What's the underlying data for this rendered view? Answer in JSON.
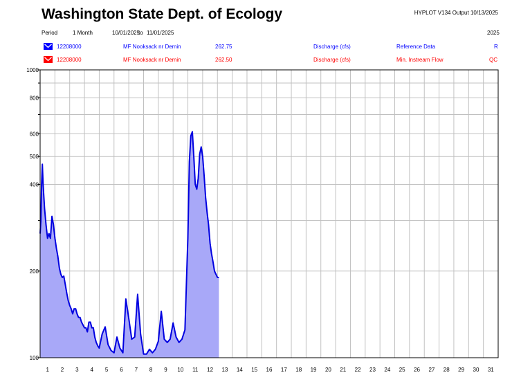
{
  "header": {
    "title": "Washington State Dept. of Ecology",
    "output_info": "HYPLOT V134  Output 10/13/2025"
  },
  "period": {
    "label": "Period",
    "duration": "1 Month",
    "start": "10/01/2025",
    "to": "to",
    "end": "11/01/2025",
    "year": "2025"
  },
  "series_rows": [
    {
      "station": "12208000",
      "site": "MF Nooksack nr Demin",
      "value": "262.75",
      "parameter": "Discharge (cfs)",
      "data_type": "Reference Data",
      "code": "R",
      "color": "#0000ff"
    },
    {
      "station": "12208000",
      "site": "MF Nooksack nr Demin",
      "value": "262.50",
      "parameter": "Discharge (cfs)",
      "data_type": "Min. Instream Flow",
      "code": "QC",
      "color": "#ff0000"
    }
  ],
  "chart_data": {
    "type": "area",
    "yscale": "log",
    "ylim": [
      100,
      1000
    ],
    "xlim": [
      1,
      32
    ],
    "y_ticks": [
      "100",
      "200",
      "400",
      "500",
      "600",
      "800",
      "1000"
    ],
    "x_ticks": [
      "1",
      "2",
      "3",
      "4",
      "5",
      "6",
      "7",
      "8",
      "9",
      "10",
      "11",
      "12",
      "13",
      "14",
      "15",
      "16",
      "17",
      "18",
      "19",
      "20",
      "21",
      "22",
      "23",
      "24",
      "25",
      "26",
      "27",
      "28",
      "29",
      "30",
      "31"
    ],
    "grid": true,
    "line_color": "#0000e0",
    "fill_color": "#a8a8f8",
    "series": [
      {
        "x": [
          1.0,
          1.05,
          1.1,
          1.15,
          1.2,
          1.3,
          1.4,
          1.5,
          1.6,
          1.7,
          1.8,
          1.9,
          2.0,
          2.1,
          2.2,
          2.3,
          2.4,
          2.5,
          2.6,
          2.7,
          2.8,
          2.9,
          3.0,
          3.1,
          3.2,
          3.3,
          3.4,
          3.5,
          3.6,
          3.7,
          3.8,
          3.9,
          4.0,
          4.1,
          4.2,
          4.3,
          4.4,
          4.5,
          4.6,
          4.7,
          4.8,
          4.9,
          5.0,
          5.2,
          5.4,
          5.6,
          5.8,
          6.0,
          6.2,
          6.4,
          6.6,
          6.8,
          7.0,
          7.2,
          7.4,
          7.6,
          7.8,
          8.0,
          8.2,
          8.4,
          8.6,
          8.8,
          9.0,
          9.2,
          9.4,
          9.6,
          9.8,
          10.0,
          10.2,
          10.4,
          10.6,
          10.8,
          11.0,
          11.1,
          11.2,
          11.3,
          11.4,
          11.5,
          11.6,
          11.7,
          11.8,
          11.9,
          12.0,
          12.1,
          12.2,
          12.3,
          12.4,
          12.5,
          12.6,
          12.7,
          12.8,
          12.9,
          13.0,
          13.1
        ],
        "values": [
          270,
          300,
          400,
          470,
          400,
          330,
          290,
          260,
          270,
          260,
          310,
          290,
          260,
          240,
          225,
          205,
          195,
          190,
          192,
          180,
          168,
          158,
          152,
          148,
          142,
          148,
          148,
          142,
          138,
          138,
          133,
          130,
          127,
          127,
          123,
          133,
          133,
          127,
          127,
          118,
          113,
          110,
          108,
          121,
          128,
          111,
          106,
          104,
          118,
          108,
          104,
          160,
          137,
          116,
          118,
          166,
          121,
          103,
          103,
          107,
          104,
          107,
          114,
          145,
          116,
          113,
          116,
          132,
          118,
          113,
          116,
          125,
          260,
          480,
          590,
          610,
          500,
          400,
          385,
          420,
          510,
          540,
          500,
          430,
          360,
          320,
          290,
          250,
          230,
          215,
          200,
          195,
          190,
          190
        ]
      }
    ]
  }
}
